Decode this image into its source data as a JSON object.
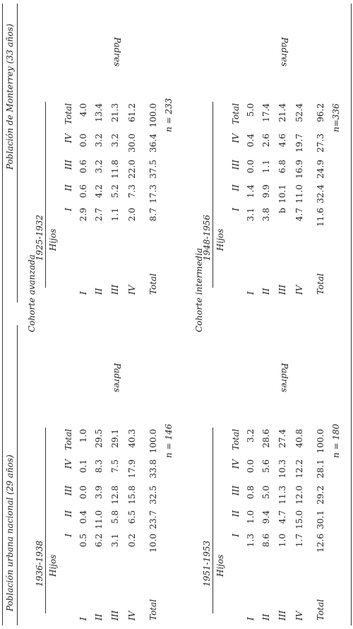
{
  "titles": {
    "left": "Población urbana nacional (29 años)",
    "right": "Población de Monterrey (33 años)"
  },
  "cohorts": {
    "advanced": "Cohorte avanzada",
    "intermediate": "Cohorte intermedia"
  },
  "labels": {
    "hijos": "Hijos",
    "padres": "Padres"
  },
  "columns": [
    "I",
    "II",
    "III",
    "IV",
    "Total"
  ],
  "row_labels": [
    "I",
    "II",
    "III",
    "IV",
    "Total"
  ],
  "tables": {
    "nat_adv": {
      "years": "1936-1938",
      "n": "n = 146",
      "rows": [
        [
          "0.5",
          "0.4",
          "0.0",
          "0.1",
          "1.0"
        ],
        [
          "6.2",
          "11.0",
          "3.9",
          "8.3",
          "29.5"
        ],
        [
          "3.1",
          "5.8",
          "12.8",
          "7.5",
          "29.1"
        ],
        [
          "0.2",
          "6.5",
          "15.8",
          "17.9",
          "40.3"
        ],
        [
          "10.0",
          "23.7",
          "32.5",
          "33.8",
          "100.0"
        ]
      ]
    },
    "nat_int": {
      "years": "1951-1953",
      "n": "n = 180",
      "rows": [
        [
          "1.3",
          "1.0",
          "0.8",
          "0.0",
          "3.2"
        ],
        [
          "8.6",
          "9.4",
          "5.0",
          "5.6",
          "28.6"
        ],
        [
          "1.0",
          "4.7",
          "11.3",
          "10.3",
          "27.4"
        ],
        [
          "1.7",
          "15.0",
          "12.0",
          "12.2",
          "40.8"
        ],
        [
          "12.6",
          "30.1",
          "29.2",
          "28.1",
          "100.0"
        ]
      ]
    },
    "mty_adv": {
      "years": "1925-1932",
      "n": "n = 233",
      "rows": [
        [
          "2.9",
          "0.6",
          "0.6",
          "0.0",
          "4.0"
        ],
        [
          "2.7",
          "4.2",
          "3.2",
          "3.2",
          "13.4"
        ],
        [
          "1.1",
          "5.2",
          "11.8",
          "3.2",
          "21.3"
        ],
        [
          "2.0",
          "7.3",
          "22.0",
          "30.0",
          "61.2"
        ],
        [
          "8.7",
          "17.3",
          "37.5",
          "36.4",
          "100.0"
        ]
      ]
    },
    "mty_int": {
      "years": "1948-1956",
      "n": "n=336",
      "rows": [
        [
          "3.1",
          "1.4",
          "0.0",
          "0.4",
          "5.0"
        ],
        [
          "3.8",
          "9.9",
          "1.1",
          "2.6",
          "17.4"
        ],
        [
          "b",
          "10.1",
          "6.8",
          "4.6",
          "21.4"
        ],
        [
          "4.7",
          "11.0",
          "16.9",
          "19.7",
          "52.4"
        ],
        [
          "11.6",
          "32.4",
          "24.9",
          "27.3",
          "96.2"
        ]
      ]
    }
  }
}
